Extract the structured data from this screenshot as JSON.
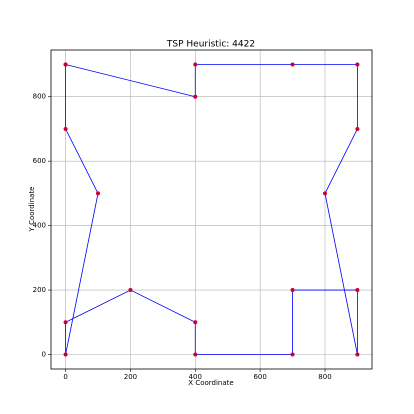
{
  "chart_data": {
    "type": "line",
    "title": "TSP Heuristic: 4422",
    "x_label": "X Coordinate",
    "y_label": "Y Coordinate",
    "x": [
      0,
      400,
      400,
      700,
      900,
      900,
      800,
      900,
      900,
      700,
      700,
      400,
      400,
      200,
      0,
      0,
      100,
      0,
      0
    ],
    "series": [
      {
        "color": "#0000ff",
        "marker_color": "#cc0033",
        "values": [
          900,
          800,
          900,
          900,
          900,
          700,
          500,
          0,
          200,
          200,
          0,
          0,
          100,
          200,
          100,
          0,
          500,
          700,
          900
        ]
      }
    ],
    "xlim": [
      -45,
      945
    ],
    "ylim": [
      -45,
      945
    ],
    "xticks": [
      0,
      200,
      400,
      600,
      800
    ],
    "yticks": [
      0,
      200,
      400,
      600,
      800
    ],
    "grid": true
  }
}
